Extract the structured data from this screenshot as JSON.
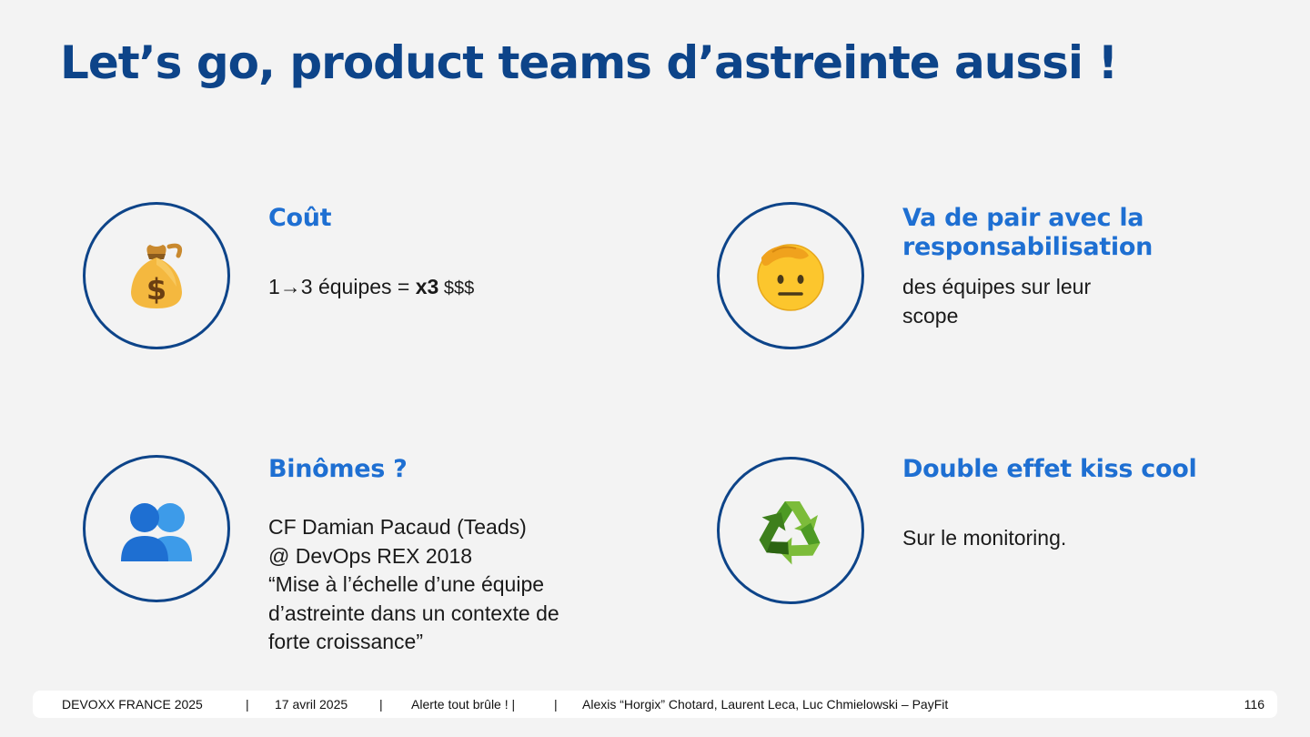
{
  "slide": {
    "title": "Let’s go, product teams d’astreinte aussi !"
  },
  "cards": {
    "cout": {
      "icon": "money-bag-icon",
      "heading": "Coût",
      "line_prefix": "1→3 équipes = ",
      "line_bold": "x3",
      "line_suffix": " $$$"
    },
    "responsabilisation": {
      "icon": "saluting-face-icon",
      "heading_line1": "Va de pair avec la",
      "heading_line2": "responsabilisation",
      "body_line1": "des équipes sur leur",
      "body_line2": "scope"
    },
    "binomes": {
      "icon": "busts-in-silhouette-icon",
      "heading": "Binômes ?",
      "lines": [
        "CF Damian Pacaud (Teads)",
        "@ DevOps REX 2018",
        "“Mise à l’échelle d’une équipe",
        "d’astreinte dans un contexte de",
        "forte croissance”"
      ]
    },
    "kiss_cool": {
      "icon": "recycling-symbol-icon",
      "heading": "Double effet kiss cool",
      "body": "Sur le monitoring."
    }
  },
  "footer": {
    "event": "DEVOXX FRANCE 2025",
    "sep1": "|",
    "date": "17 avril 2025",
    "sep2": "|",
    "talk": "Alerte tout brûle ! |",
    "sep3": "|",
    "authors": "Alexis “Horgix” Chotard, Laurent Leca, Luc Chmielowski – PayFit",
    "page": "116"
  },
  "colors": {
    "title": "#0d4489",
    "heading": "#1e6fd2",
    "circle_border": "#0d4489",
    "background": "#f3f3f3"
  }
}
